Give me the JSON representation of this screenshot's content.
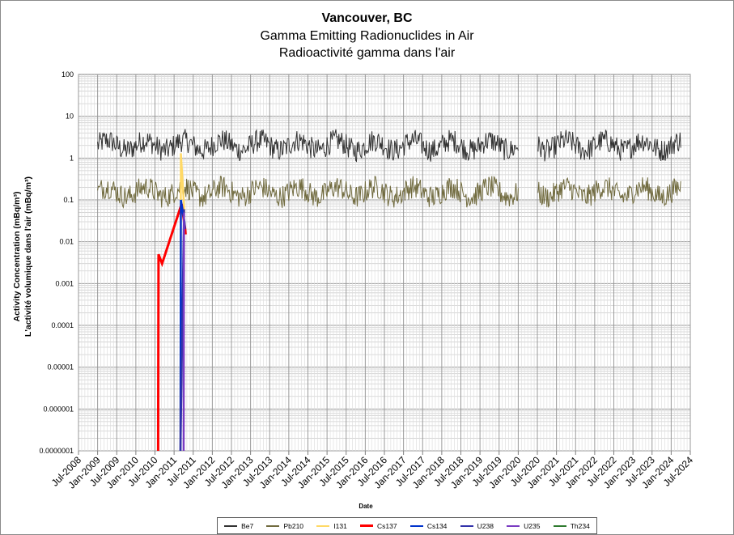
{
  "chart_data": {
    "type": "line",
    "title": "Vancouver, BC",
    "subtitle1": "Gamma Emitting Radionuclides in Air",
    "subtitle2": "Radioactivité gamma dans l'air",
    "xlabel": "Date",
    "ylabel1": "Activity Concentration  (mBq/m³)",
    "ylabel2": "L'activité volumique dans l'air (mBq/m³)",
    "yscale": "log",
    "ylim": [
      1e-07,
      100
    ],
    "y_ticks": [
      "100",
      "10",
      "1",
      "0.1",
      "0.01",
      "0.001",
      "0.0001",
      "0.00001",
      "0.000001",
      "0.0000001"
    ],
    "x_ticks": [
      "Jul-2008",
      "Jan-2009",
      "Jul-2009",
      "Jan-2010",
      "Jul-2010",
      "Jan-2011",
      "Jul-2011",
      "Jan-2012",
      "Jul-2012",
      "Jan-2013",
      "Jul-2013",
      "Jan-2014",
      "Jul-2014",
      "Jan-2015",
      "Jul-2015",
      "Jan-2016",
      "Jul-2016",
      "Jan-2017",
      "Jul-2017",
      "Jan-2018",
      "Jul-2018",
      "Jan-2019",
      "Jul-2019",
      "Jan-2020",
      "Jul-2020",
      "Jan-2021",
      "Jul-2021",
      "Jan-2022",
      "Jul-2022",
      "Jan-2023",
      "Jul-2023",
      "Jan-2024",
      "Jul-2024"
    ],
    "x_range": [
      "2008-07",
      "2024-07"
    ],
    "gap": [
      "2020-01",
      "2020-07"
    ],
    "grid": true,
    "legend_position": "bottom",
    "series": [
      {
        "name": "Be7",
        "color": "#333333",
        "typical_range": [
          0.9,
          4.5
        ],
        "start": "2009-01",
        "end": "2024-04"
      },
      {
        "name": "Pb210",
        "color": "#716b3f",
        "typical_range": [
          0.06,
          0.4
        ],
        "start": "2009-01",
        "end": "2024-04"
      },
      {
        "name": "I131",
        "color": "#ffd966",
        "x": [
          "2011-03",
          "2011-03",
          "2011-04"
        ],
        "y": [
          1e-07,
          1.3,
          0.05
        ]
      },
      {
        "name": "Cs137",
        "color": "#ff0000",
        "x": [
          "2010-08",
          "2010-08",
          "2010-09",
          "2011-03",
          "2011-04",
          "2011-04"
        ],
        "y": [
          1e-07,
          0.005,
          0.003,
          0.08,
          0.02,
          0.015
        ]
      },
      {
        "name": "Cs134",
        "color": "#0033cc",
        "x": [
          "2011-03",
          "2011-03",
          "2011-04",
          "2011-04"
        ],
        "y": [
          1e-07,
          0.1,
          0.03,
          0.02
        ]
      },
      {
        "name": "U238",
        "color": "#3333aa",
        "x": [
          "2011-03",
          "2011-04"
        ],
        "y": [
          1e-07,
          0.06
        ]
      },
      {
        "name": "U235",
        "color": "#7a3cc2",
        "x": [
          "2011-04",
          "2011-04"
        ],
        "y": [
          1e-07,
          0.05
        ]
      },
      {
        "name": "Th234",
        "color": "#2f7a2f",
        "x": [],
        "y": []
      }
    ]
  }
}
